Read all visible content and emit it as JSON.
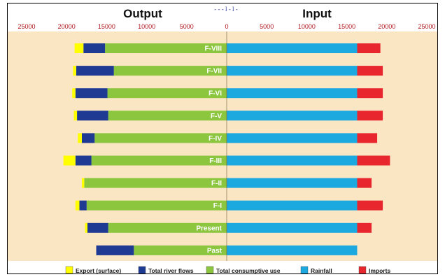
{
  "chart_data": {
    "type": "bar",
    "orientation": "horizontal-butterfly",
    "left_panel_title": "Output",
    "right_panel_title": "Input",
    "axis_ticks": [
      {
        "value": -25000,
        "label": "25000"
      },
      {
        "value": -20000,
        "label": "20000"
      },
      {
        "value": -15000,
        "label": "15000"
      },
      {
        "value": -10000,
        "label": "10000"
      },
      {
        "value": -5000,
        "label": "5000"
      },
      {
        "value": 0,
        "label": "0"
      },
      {
        "value": 5000,
        "label": "5000"
      },
      {
        "value": 10000,
        "label": "10000"
      },
      {
        "value": 15000,
        "label": "15000"
      },
      {
        "value": 20000,
        "label": "20000"
      },
      {
        "value": 25000,
        "label": "25000"
      }
    ],
    "xlim": [
      -25000,
      25000
    ],
    "categories": [
      "F-VIII",
      "F-VII",
      "F-VI",
      "F-V",
      "F-IV",
      "F-III",
      "F-II",
      "F-I",
      "Present",
      "Past"
    ],
    "series": [
      {
        "name": "Export (surface)",
        "side": "output",
        "color": "#ffff00",
        "values": [
          1100,
          400,
          400,
          400,
          500,
          1500,
          300,
          500,
          300,
          0
        ]
      },
      {
        "name": "Total river flows",
        "side": "output",
        "color": "#1f3a93",
        "values": [
          2700,
          4700,
          4000,
          3900,
          1600,
          2000,
          0,
          900,
          2600,
          4700
        ]
      },
      {
        "name": "Total consumptive use",
        "side": "output",
        "color": "#8cc63f",
        "values": [
          15200,
          14100,
          14900,
          14800,
          16500,
          16900,
          17800,
          17500,
          14800,
          11600
        ]
      },
      {
        "name": "Rainfall",
        "side": "input",
        "color": "#1ca9e0",
        "values": [
          16300,
          16300,
          16300,
          16300,
          16300,
          16300,
          16300,
          16300,
          16300,
          16300
        ]
      },
      {
        "name": "Imports",
        "side": "input",
        "color": "#e8262d",
        "values": [
          2900,
          3200,
          3200,
          3200,
          2500,
          4100,
          1800,
          3200,
          1800,
          0
        ]
      }
    ],
    "background_color": "#fbe6c4",
    "grid": false,
    "legend_placement": "bottom",
    "stray_top_text": "- - - l - l -"
  }
}
